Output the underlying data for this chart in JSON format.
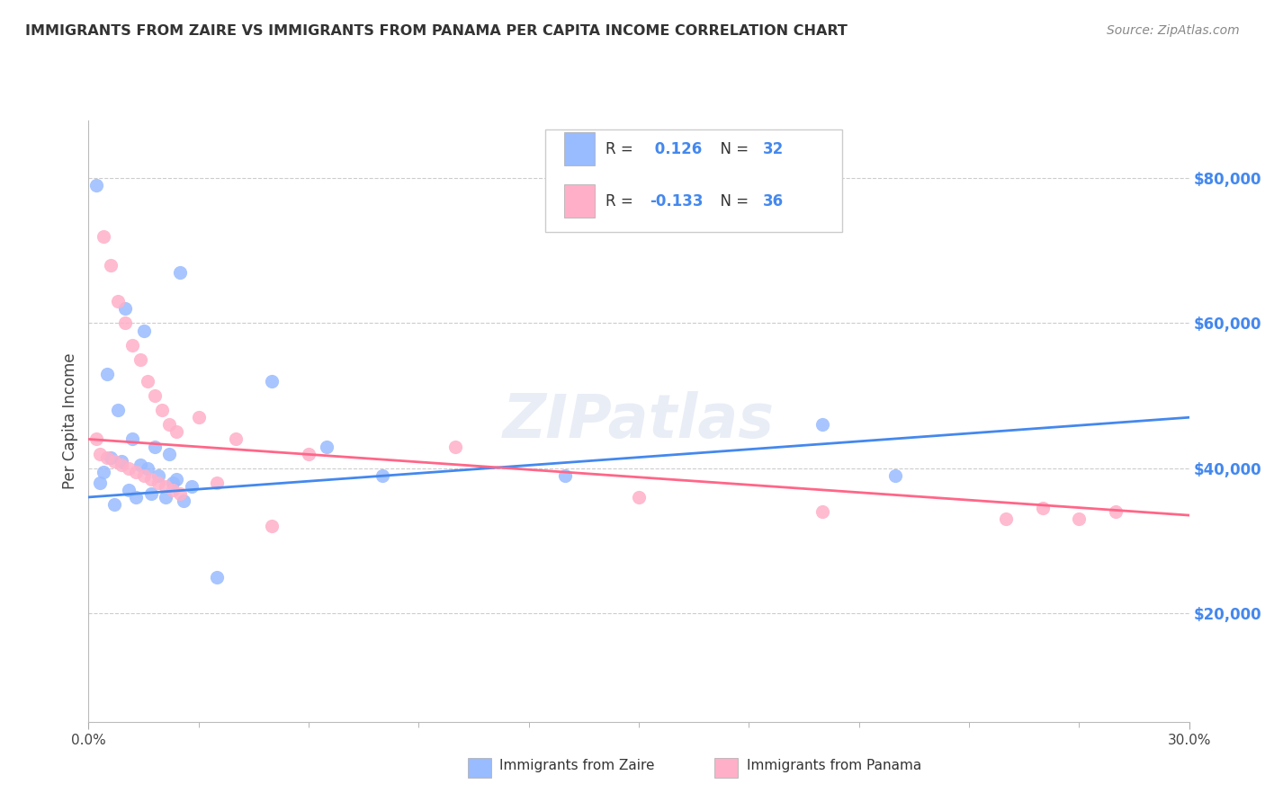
{
  "title": "IMMIGRANTS FROM ZAIRE VS IMMIGRANTS FROM PANAMA PER CAPITA INCOME CORRELATION CHART",
  "source": "Source: ZipAtlas.com",
  "ylabel": "Per Capita Income",
  "watermark": "ZIPatlas",
  "legend": {
    "zaire_R": "0.126",
    "zaire_N": "32",
    "panama_R": "-0.133",
    "panama_N": "36"
  },
  "yticks": [
    20000,
    40000,
    60000,
    80000
  ],
  "ytick_labels": [
    "$20,000",
    "$40,000",
    "$60,000",
    "$80,000"
  ],
  "xmin": 0.0,
  "xmax": 0.3,
  "ymin": 5000,
  "ymax": 88000,
  "zaire_color": "#99BBFF",
  "panama_color": "#FFB0C8",
  "zaire_line_color": "#4488EE",
  "panama_line_color": "#FF6688",
  "text_blue": "#4488EE",
  "background_color": "#FFFFFF",
  "grid_color": "#CCCCCC",
  "zaire_scatter_x": [
    0.002,
    0.025,
    0.01,
    0.015,
    0.005,
    0.008,
    0.012,
    0.018,
    0.022,
    0.006,
    0.009,
    0.014,
    0.016,
    0.004,
    0.019,
    0.024,
    0.003,
    0.028,
    0.011,
    0.017,
    0.021,
    0.026,
    0.05,
    0.065,
    0.08,
    0.13,
    0.2,
    0.22,
    0.007,
    0.013,
    0.023,
    0.035
  ],
  "zaire_scatter_y": [
    79000,
    67000,
    62000,
    59000,
    53000,
    48000,
    44000,
    43000,
    42000,
    41500,
    41000,
    40500,
    40000,
    39500,
    39000,
    38500,
    38000,
    37500,
    37000,
    36500,
    36000,
    35500,
    52000,
    43000,
    39000,
    39000,
    46000,
    39000,
    35000,
    36000,
    38000,
    25000
  ],
  "panama_scatter_x": [
    0.002,
    0.004,
    0.006,
    0.008,
    0.01,
    0.012,
    0.014,
    0.016,
    0.018,
    0.02,
    0.022,
    0.024,
    0.003,
    0.005,
    0.007,
    0.009,
    0.011,
    0.013,
    0.015,
    0.017,
    0.019,
    0.021,
    0.023,
    0.025,
    0.03,
    0.04,
    0.06,
    0.1,
    0.15,
    0.2,
    0.25,
    0.26,
    0.27,
    0.28,
    0.035,
    0.05
  ],
  "panama_scatter_y": [
    44000,
    72000,
    68000,
    63000,
    60000,
    57000,
    55000,
    52000,
    50000,
    48000,
    46000,
    45000,
    42000,
    41500,
    41000,
    40500,
    40000,
    39500,
    39000,
    38500,
    38000,
    37500,
    37000,
    36500,
    47000,
    44000,
    42000,
    43000,
    36000,
    34000,
    33000,
    34500,
    33000,
    34000,
    38000,
    32000
  ],
  "zaire_trend": [
    36000,
    47000
  ],
  "panama_trend": [
    44000,
    33500
  ]
}
